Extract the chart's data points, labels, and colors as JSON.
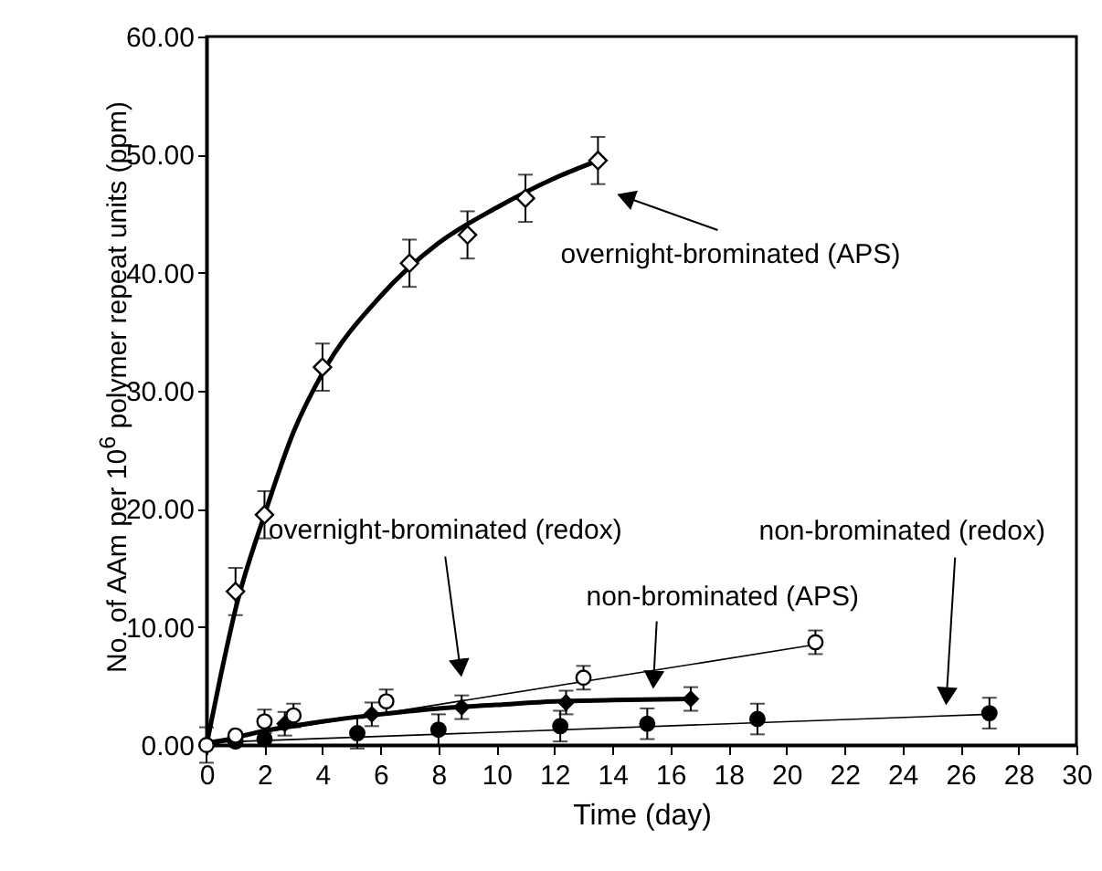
{
  "chart_data": {
    "type": "scatter",
    "xlabel": "Time (day)",
    "ylabel": "No. of AAm per 10$^{6}$ polymer repeat units (ppm)",
    "xlim": [
      0,
      30
    ],
    "ylim": [
      0,
      60
    ],
    "xticks": [
      0,
      2,
      4,
      6,
      8,
      10,
      12,
      14,
      16,
      18,
      20,
      22,
      24,
      26,
      28,
      30
    ],
    "yticks": [
      {
        "value": 0,
        "label": "0.00"
      },
      {
        "value": 10,
        "label": "10.00"
      },
      {
        "value": 20,
        "label": "20.00"
      },
      {
        "value": 30,
        "label": "30.00"
      },
      {
        "value": 40,
        "label": "40.00"
      },
      {
        "value": 50,
        "label": "50.00"
      },
      {
        "value": 60,
        "label": "60.00"
      }
    ],
    "grid": false,
    "series": [
      {
        "marker": "diamond",
        "color": "#000000",
        "x": [
          1,
          2,
          4,
          7,
          9,
          11,
          13.5
        ],
        "values": [
          13,
          19.5,
          32,
          40.8,
          43.2,
          46.3,
          49.5
        ],
        "errors": [
          2,
          2,
          2,
          2,
          2,
          2,
          2
        ]
      },
      {
        "marker": "diamond",
        "color": "#000000",
        "x": [
          2.7,
          5.7,
          8.8,
          12.4,
          16.7
        ],
        "values": [
          1.8,
          2.6,
          3.2,
          3.6,
          3.9
        ],
        "errors": [
          1,
          1,
          1,
          1,
          1
        ]
      },
      {
        "marker": "circle",
        "color": "#000000",
        "x": [
          1,
          2,
          5.2,
          8,
          12.2,
          15.2,
          19,
          27
        ],
        "values": [
          0.3,
          0.5,
          1,
          1.3,
          1.6,
          1.8,
          2.2,
          2.7
        ],
        "errors": [
          null,
          null,
          1.3,
          1.3,
          1.3,
          1.3,
          1.3,
          1.3
        ]
      },
      {
        "marker": "circle",
        "color": "#000000",
        "x": [
          0,
          1,
          2,
          3,
          6.2,
          13,
          21
        ],
        "values": [
          0,
          0.8,
          2,
          2.5,
          3.7,
          5.7,
          8.7
        ],
        "errors": [
          1.5,
          null,
          1,
          1,
          1,
          1,
          1
        ]
      },
      {
        "type": "line",
        "color": "#000000",
        "x": [
          0,
          0.5,
          1,
          2,
          3,
          4,
          6,
          8,
          10,
          12,
          13.5
        ],
        "values": [
          0,
          6,
          11.5,
          19.5,
          26.5,
          31.5,
          38,
          42.5,
          45.5,
          48,
          49.5
        ]
      },
      {
        "type": "line",
        "color": "#000000",
        "x": [
          0,
          2,
          4,
          6,
          8,
          10,
          12,
          14,
          16.7
        ],
        "values": [
          0,
          1.2,
          2,
          2.6,
          3.1,
          3.4,
          3.7,
          3.8,
          3.9
        ]
      },
      {
        "type": "line",
        "color": "#000000",
        "x": [
          0,
          21
        ],
        "values": [
          0.3,
          8.5
        ]
      },
      {
        "type": "line",
        "color": "#000000",
        "x": [
          0,
          27
        ],
        "values": [
          0.2,
          2.6
        ]
      }
    ],
    "annotations": [
      "overnight-brominated (APS)",
      "overnight-brominated (redox)",
      "non-brominated (APS)",
      "non-brominated (redox)"
    ]
  }
}
